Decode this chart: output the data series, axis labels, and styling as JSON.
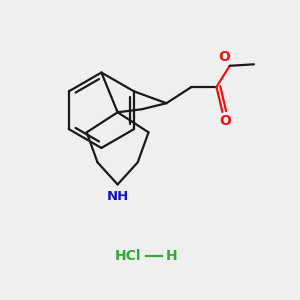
{
  "background_color": "#efefef",
  "bond_color": "#1a1a1a",
  "bond_width": 1.6,
  "o_color": "#ee1111",
  "n_color": "#1111cc",
  "hcl_color": "#33aa33",
  "figsize": [
    3.0,
    3.0
  ],
  "dpi": 100,
  "xlim": [
    0,
    10
  ],
  "ylim": [
    0,
    10
  ]
}
